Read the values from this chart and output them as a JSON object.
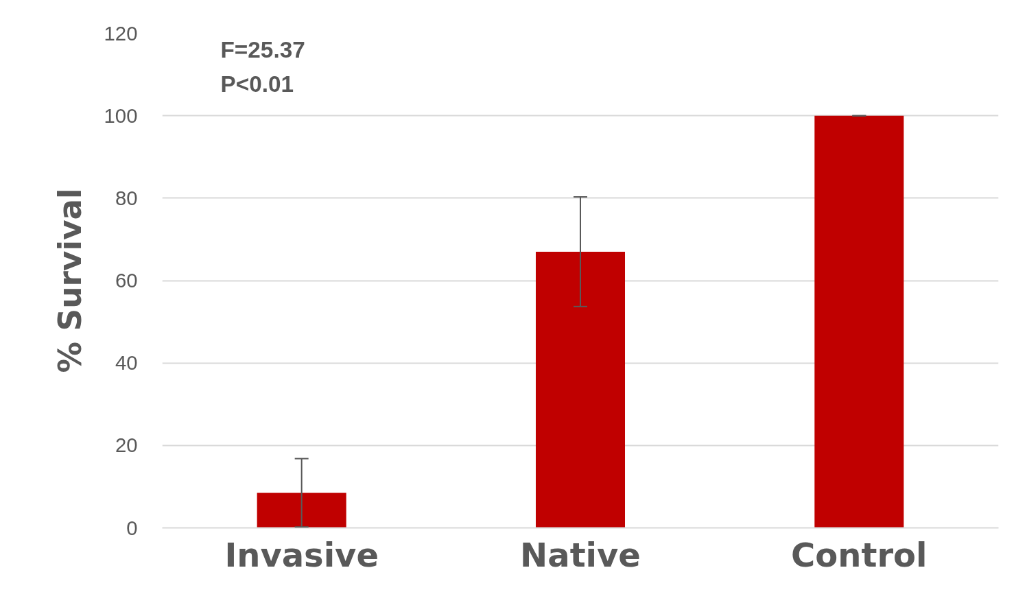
{
  "chart_data": {
    "type": "bar",
    "categories": [
      "Invasive",
      "Native",
      "Control"
    ],
    "values": [
      8.5,
      67,
      100
    ],
    "errors": [
      8.3,
      13.3,
      0
    ],
    "color": "#c00000",
    "ylabel": "% Survival",
    "ylim": [
      0,
      120
    ],
    "yticks": [
      0,
      20,
      40,
      60,
      80,
      100,
      120
    ],
    "grid": "y",
    "annotations": [
      "F=25.37",
      "P<0.01"
    ]
  }
}
